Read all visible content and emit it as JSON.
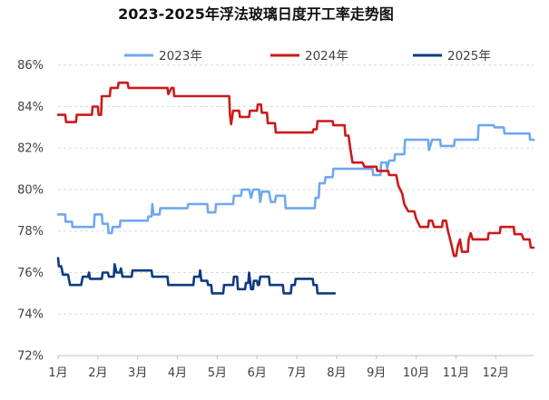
{
  "chart_data": {
    "type": "line",
    "title": "2023-2025年浮法玻璃日度开工率走势图",
    "xlabel": "",
    "ylabel": "",
    "x_categories": [
      "1月",
      "2月",
      "3月",
      "4月",
      "5月",
      "6月",
      "7月",
      "8月",
      "9月",
      "10月",
      "11月",
      "12月"
    ],
    "x_range": [
      1,
      12.95
    ],
    "yticks": [
      72,
      74,
      76,
      78,
      80,
      82,
      84,
      86
    ],
    "ytick_labels": [
      "72%",
      "74%",
      "76%",
      "78%",
      "80%",
      "82%",
      "84%",
      "86%"
    ],
    "ylim": [
      72,
      86.6
    ],
    "grid": "horizontal-dashed",
    "legend_position": "top-center",
    "series": [
      {
        "name": "2023年",
        "color": "#6fa8f0",
        "points": [
          [
            1.0,
            78.8
          ],
          [
            1.18,
            78.8
          ],
          [
            1.19,
            78.45
          ],
          [
            1.35,
            78.45
          ],
          [
            1.36,
            78.2
          ],
          [
            1.9,
            78.2
          ],
          [
            1.92,
            78.8
          ],
          [
            2.1,
            78.8
          ],
          [
            2.12,
            78.35
          ],
          [
            2.25,
            78.35
          ],
          [
            2.27,
            77.9
          ],
          [
            2.35,
            77.9
          ],
          [
            2.37,
            78.2
          ],
          [
            2.55,
            78.2
          ],
          [
            2.57,
            78.5
          ],
          [
            3.25,
            78.5
          ],
          [
            3.27,
            78.7
          ],
          [
            3.35,
            78.7
          ],
          [
            3.37,
            79.3
          ],
          [
            3.4,
            78.8
          ],
          [
            3.55,
            78.8
          ],
          [
            3.57,
            79.1
          ],
          [
            4.25,
            79.1
          ],
          [
            4.27,
            79.3
          ],
          [
            4.75,
            79.3
          ],
          [
            4.77,
            78.9
          ],
          [
            4.95,
            78.9
          ],
          [
            4.97,
            79.3
          ],
          [
            5.4,
            79.3
          ],
          [
            5.42,
            79.7
          ],
          [
            5.6,
            79.7
          ],
          [
            5.62,
            80.0
          ],
          [
            5.8,
            80.0
          ],
          [
            5.85,
            79.6
          ],
          [
            5.9,
            80.0
          ],
          [
            6.05,
            80.0
          ],
          [
            6.08,
            79.4
          ],
          [
            6.12,
            79.9
          ],
          [
            6.3,
            79.9
          ],
          [
            6.35,
            79.4
          ],
          [
            6.45,
            79.4
          ],
          [
            6.48,
            79.7
          ],
          [
            6.7,
            79.7
          ],
          [
            6.72,
            79.1
          ],
          [
            7.45,
            79.1
          ],
          [
            7.47,
            79.6
          ],
          [
            7.55,
            79.6
          ],
          [
            7.57,
            80.3
          ],
          [
            7.7,
            80.3
          ],
          [
            7.72,
            80.6
          ],
          [
            7.9,
            80.6
          ],
          [
            7.92,
            81.0
          ],
          [
            8.9,
            81.0
          ],
          [
            8.92,
            80.7
          ],
          [
            9.1,
            80.7
          ],
          [
            9.12,
            81.3
          ],
          [
            9.25,
            81.3
          ],
          [
            9.27,
            81.0
          ],
          [
            9.32,
            81.4
          ],
          [
            9.45,
            81.4
          ],
          [
            9.47,
            81.7
          ],
          [
            9.7,
            81.7
          ],
          [
            9.72,
            82.4
          ],
          [
            10.3,
            82.4
          ],
          [
            10.32,
            81.9
          ],
          [
            10.4,
            82.4
          ],
          [
            10.6,
            82.4
          ],
          [
            10.62,
            82.1
          ],
          [
            10.95,
            82.1
          ],
          [
            10.97,
            82.4
          ],
          [
            11.55,
            82.4
          ],
          [
            11.57,
            83.1
          ],
          [
            11.95,
            83.1
          ],
          [
            11.97,
            83.0
          ],
          [
            12.2,
            83.0
          ],
          [
            12.22,
            82.7
          ],
          [
            12.85,
            82.7
          ],
          [
            12.86,
            82.4
          ],
          [
            12.95,
            82.4
          ]
        ]
      },
      {
        "name": "2024年",
        "color": "#cc1a1a",
        "points": [
          [
            1.0,
            83.6
          ],
          [
            1.18,
            83.6
          ],
          [
            1.2,
            83.25
          ],
          [
            1.45,
            83.25
          ],
          [
            1.47,
            83.6
          ],
          [
            1.85,
            83.6
          ],
          [
            1.87,
            84.0
          ],
          [
            2.0,
            84.0
          ],
          [
            2.02,
            83.6
          ],
          [
            2.08,
            83.6
          ],
          [
            2.1,
            84.5
          ],
          [
            2.3,
            84.5
          ],
          [
            2.32,
            84.9
          ],
          [
            2.5,
            84.9
          ],
          [
            2.52,
            85.15
          ],
          [
            2.75,
            85.15
          ],
          [
            2.77,
            84.9
          ],
          [
            3.75,
            84.9
          ],
          [
            3.77,
            84.6
          ],
          [
            3.85,
            84.9
          ],
          [
            3.9,
            84.9
          ],
          [
            3.92,
            84.5
          ],
          [
            5.3,
            84.5
          ],
          [
            5.32,
            83.6
          ],
          [
            5.35,
            83.15
          ],
          [
            5.4,
            83.8
          ],
          [
            5.55,
            83.8
          ],
          [
            5.57,
            83.5
          ],
          [
            5.8,
            83.5
          ],
          [
            5.82,
            83.8
          ],
          [
            6.0,
            83.8
          ],
          [
            6.02,
            84.1
          ],
          [
            6.1,
            84.1
          ],
          [
            6.12,
            83.7
          ],
          [
            6.25,
            83.7
          ],
          [
            6.27,
            83.2
          ],
          [
            6.45,
            83.2
          ],
          [
            6.47,
            82.75
          ],
          [
            7.4,
            82.75
          ],
          [
            7.42,
            82.9
          ],
          [
            7.5,
            82.9
          ],
          [
            7.52,
            83.3
          ],
          [
            7.9,
            83.3
          ],
          [
            7.92,
            83.1
          ],
          [
            8.2,
            83.1
          ],
          [
            8.22,
            82.6
          ],
          [
            8.3,
            82.6
          ],
          [
            8.35,
            81.9
          ],
          [
            8.4,
            81.3
          ],
          [
            8.65,
            81.3
          ],
          [
            8.7,
            81.1
          ],
          [
            9.0,
            81.1
          ],
          [
            9.02,
            80.9
          ],
          [
            9.3,
            80.9
          ],
          [
            9.32,
            80.7
          ],
          [
            9.5,
            80.7
          ],
          [
            9.55,
            80.2
          ],
          [
            9.65,
            79.8
          ],
          [
            9.7,
            79.3
          ],
          [
            9.8,
            78.95
          ],
          [
            9.95,
            78.95
          ],
          [
            10.0,
            78.6
          ],
          [
            10.1,
            78.2
          ],
          [
            10.3,
            78.2
          ],
          [
            10.32,
            78.5
          ],
          [
            10.4,
            78.5
          ],
          [
            10.45,
            78.2
          ],
          [
            10.65,
            78.2
          ],
          [
            10.67,
            78.5
          ],
          [
            10.75,
            78.5
          ],
          [
            10.8,
            78.0
          ],
          [
            10.88,
            77.4
          ],
          [
            10.95,
            76.8
          ],
          [
            11.0,
            76.8
          ],
          [
            11.05,
            77.3
          ],
          [
            11.1,
            77.6
          ],
          [
            11.15,
            77.0
          ],
          [
            11.3,
            77.0
          ],
          [
            11.32,
            77.6
          ],
          [
            11.37,
            77.9
          ],
          [
            11.42,
            77.6
          ],
          [
            11.8,
            77.6
          ],
          [
            11.82,
            77.9
          ],
          [
            12.1,
            77.9
          ],
          [
            12.12,
            78.2
          ],
          [
            12.45,
            78.2
          ],
          [
            12.47,
            77.85
          ],
          [
            12.65,
            77.85
          ],
          [
            12.7,
            77.6
          ],
          [
            12.85,
            77.6
          ],
          [
            12.88,
            77.2
          ],
          [
            12.95,
            77.2
          ]
        ]
      },
      {
        "name": "2025年",
        "color": "#0d3b82",
        "points": [
          [
            1.0,
            76.7
          ],
          [
            1.02,
            76.3
          ],
          [
            1.08,
            76.3
          ],
          [
            1.12,
            75.9
          ],
          [
            1.25,
            75.9
          ],
          [
            1.3,
            75.4
          ],
          [
            1.58,
            75.4
          ],
          [
            1.62,
            75.8
          ],
          [
            1.75,
            75.8
          ],
          [
            1.78,
            76.0
          ],
          [
            1.8,
            75.7
          ],
          [
            2.1,
            75.7
          ],
          [
            2.12,
            76.0
          ],
          [
            2.25,
            76.0
          ],
          [
            2.28,
            75.8
          ],
          [
            2.4,
            75.8
          ],
          [
            2.42,
            76.4
          ],
          [
            2.47,
            76.0
          ],
          [
            2.55,
            76.0
          ],
          [
            2.58,
            76.2
          ],
          [
            2.62,
            75.8
          ],
          [
            2.85,
            75.8
          ],
          [
            2.87,
            76.1
          ],
          [
            3.35,
            76.1
          ],
          [
            3.37,
            75.8
          ],
          [
            3.75,
            75.8
          ],
          [
            3.77,
            75.4
          ],
          [
            4.4,
            75.4
          ],
          [
            4.42,
            75.8
          ],
          [
            4.55,
            75.8
          ],
          [
            4.57,
            76.1
          ],
          [
            4.6,
            75.6
          ],
          [
            4.75,
            75.6
          ],
          [
            4.77,
            75.4
          ],
          [
            4.85,
            75.4
          ],
          [
            4.87,
            75.0
          ],
          [
            5.15,
            75.0
          ],
          [
            5.17,
            75.4
          ],
          [
            5.4,
            75.4
          ],
          [
            5.42,
            75.8
          ],
          [
            5.5,
            75.8
          ],
          [
            5.52,
            75.2
          ],
          [
            5.7,
            75.2
          ],
          [
            5.72,
            75.5
          ],
          [
            5.78,
            75.5
          ],
          [
            5.8,
            76.0
          ],
          [
            5.85,
            75.2
          ],
          [
            5.9,
            75.2
          ],
          [
            5.92,
            75.6
          ],
          [
            6.0,
            75.6
          ],
          [
            6.02,
            75.4
          ],
          [
            6.05,
            75.4
          ],
          [
            6.08,
            75.8
          ],
          [
            6.3,
            75.8
          ],
          [
            6.32,
            75.4
          ],
          [
            6.65,
            75.4
          ],
          [
            6.67,
            75.0
          ],
          [
            6.85,
            75.0
          ],
          [
            6.87,
            75.4
          ],
          [
            6.95,
            75.4
          ],
          [
            6.97,
            75.7
          ],
          [
            7.4,
            75.7
          ],
          [
            7.42,
            75.4
          ],
          [
            7.5,
            75.4
          ],
          [
            7.52,
            75.0
          ],
          [
            7.95,
            75.0
          ]
        ]
      }
    ]
  }
}
